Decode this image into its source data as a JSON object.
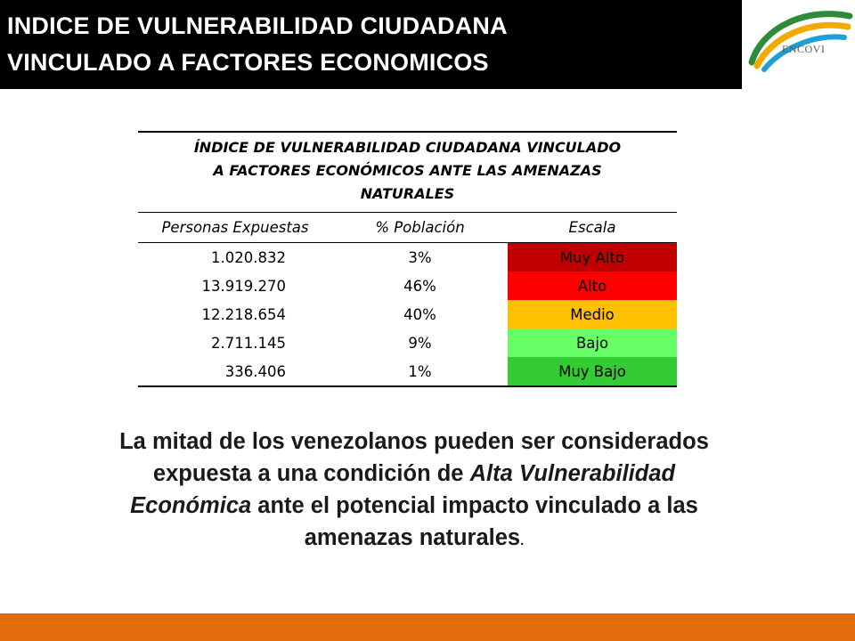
{
  "header": {
    "title_line1": "INDICE DE VULNERABILIDAD CIUDADANA",
    "title_line2": "VINCULADO A FACTORES ECONOMICOS",
    "logo_text": "ENCOVI"
  },
  "table": {
    "caption_line1": "ÍNDICE DE VULNERABILIDAD CIUDADANA VINCULADO",
    "caption_line2": "A FACTORES ECONÓMICOS ANTE LAS AMENAZAS",
    "caption_line3": "NATURALES",
    "columns": [
      "Personas Expuestas",
      "% Población",
      "Escala"
    ],
    "rows": [
      {
        "personas": "1.020.832",
        "poblacion": "3%",
        "escala": "Muy Alto",
        "color": "#c00000"
      },
      {
        "personas": "13.919.270",
        "poblacion": "46%",
        "escala": "Alto",
        "color": "#ff0000"
      },
      {
        "personas": "12.218.654",
        "poblacion": "40%",
        "escala": "Medio",
        "color": "#ffc000"
      },
      {
        "personas": "2.711.145",
        "poblacion": "9%",
        "escala": "Bajo",
        "color": "#66ff66"
      },
      {
        "personas": "336.406",
        "poblacion": "1%",
        "escala": "Muy Bajo",
        "color": "#33cc33"
      }
    ]
  },
  "summary": {
    "part1": "La mitad de los venezolanos pueden ser considerados expuesta a una condición de",
    "emphasis": "Alta Vulnerabilidad Económica",
    "part2": "ante el potencial impacto vinculado a las amenazas naturales",
    "end_mark": "."
  },
  "colors": {
    "title_band": "#000000",
    "footer_bar": "#e36c0a"
  }
}
